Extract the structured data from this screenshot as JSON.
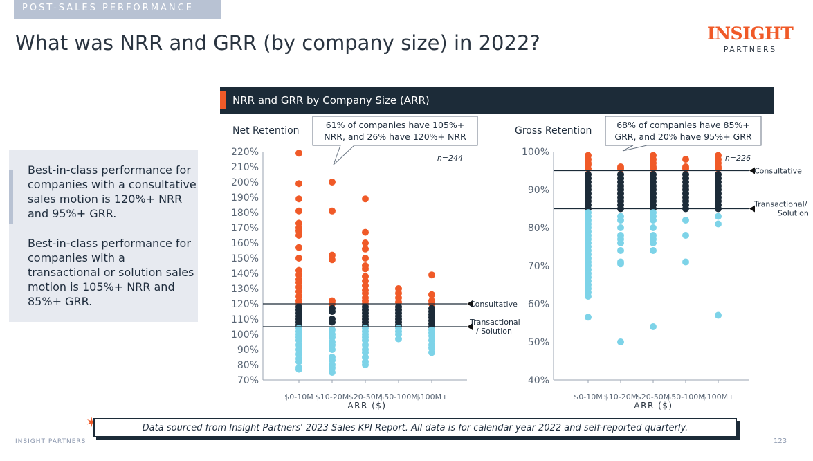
{
  "tag": "POST-SALES PERFORMANCE",
  "title": "What was NRR and GRR (by company size) in 2022?",
  "logo": {
    "line1": "INSIGHT",
    "line2": "PARTNERS"
  },
  "side": {
    "p1": "Best-in-class performance for companies with a consultative sales motion is 120%+ NRR and 95%+ GRR.",
    "p2": "Best-in-class performance for companies with a transactional or solution sales motion is 105%+ NRR and 85%+ GRR."
  },
  "chart_header": "NRR and GRR by Company Size (ARR)",
  "chart_data": [
    {
      "type": "scatter",
      "title": "Net Retention",
      "xlabel": "ARR ($)",
      "categories": [
        "$0-10M",
        "$10-20M",
        "$20-50M",
        "$50-100M",
        "$100M+"
      ],
      "ylim": [
        70,
        220
      ],
      "yticks": [
        220,
        210,
        200,
        190,
        180,
        170,
        160,
        150,
        140,
        130,
        120,
        110,
        100,
        90,
        80,
        70
      ],
      "ytick_suffix": "%",
      "n_label": "n=244",
      "callout": "61% of companies have 105%+ NRR, and 26% have 120%+ NRR",
      "thresholds": [
        {
          "value": 120,
          "label": "Consultative"
        },
        {
          "value": 105,
          "label": "Transactional / Solution"
        }
      ],
      "colors": {
        "above": "#f05a28",
        "middle": "#1c2b38",
        "below": "#7dd3e8"
      },
      "series": [
        {
          "category": "$0-10M",
          "values": [
            219,
            199,
            189,
            181,
            173,
            170,
            168,
            165,
            157,
            150,
            142,
            139,
            136,
            134,
            131,
            128,
            125,
            122,
            120,
            118,
            116,
            114,
            112,
            110,
            108,
            106,
            104,
            102,
            100,
            98,
            96,
            93,
            90,
            87,
            84,
            82,
            78,
            77
          ]
        },
        {
          "category": "$10-20M",
          "values": [
            200,
            181,
            152,
            149,
            122,
            120,
            117,
            115,
            110,
            108,
            103,
            100,
            98,
            95,
            93,
            90,
            85,
            83,
            80,
            78,
            75
          ]
        },
        {
          "category": "$20-50M",
          "values": [
            189,
            167,
            160,
            156,
            150,
            145,
            143,
            138,
            135,
            132,
            129,
            127,
            124,
            122,
            120,
            118,
            116,
            114,
            112,
            110,
            108,
            106,
            104,
            102,
            100,
            98,
            96,
            93,
            90,
            88,
            85,
            82,
            80
          ]
        },
        {
          "category": "$50-100M",
          "values": [
            130,
            127,
            124,
            121,
            118,
            116,
            114,
            112,
            110,
            108,
            106,
            104,
            102,
            100,
            97
          ]
        },
        {
          "category": "$100M+",
          "values": [
            139,
            126,
            122,
            120,
            117,
            115,
            113,
            111,
            109,
            107,
            105,
            103,
            101,
            99,
            96,
            93,
            91,
            88
          ]
        }
      ]
    },
    {
      "type": "scatter",
      "title": "Gross Retention",
      "xlabel": "ARR ($)",
      "categories": [
        "$0-10M",
        "$10-20M",
        "$20-50M",
        "$50-100M",
        "$100M+"
      ],
      "ylim": [
        40,
        100
      ],
      "yticks": [
        100,
        90,
        80,
        70,
        60,
        50,
        40
      ],
      "ytick_suffix": "%",
      "n_label": "n=226",
      "callout": "68% of companies have 85%+ GRR, and 20% have 95%+ GRR",
      "thresholds": [
        {
          "value": 95,
          "label": "Consultative"
        },
        {
          "value": 85,
          "label": "Transactional/ Solution"
        }
      ],
      "colors": {
        "above": "#f05a28",
        "middle": "#1c2b38",
        "below": "#7dd3e8"
      },
      "series": [
        {
          "category": "$0-10M",
          "values": [
            99,
            98,
            97,
            96.5,
            95.5,
            94,
            93,
            92,
            91,
            90,
            89,
            88,
            87,
            86,
            85,
            84,
            83,
            82,
            81,
            80,
            79,
            78,
            77,
            76,
            75,
            74,
            73,
            72,
            71,
            70,
            69,
            68,
            67,
            66,
            65,
            64,
            63,
            62,
            56.5
          ]
        },
        {
          "category": "$10-20M",
          "values": [
            96,
            95.5,
            94,
            93,
            92,
            91,
            90,
            89,
            88,
            87,
            86,
            85,
            83,
            82,
            80,
            78,
            77,
            76,
            74,
            71,
            70.5,
            50
          ]
        },
        {
          "category": "$20-50M",
          "values": [
            99,
            98,
            97,
            96,
            95.5,
            94,
            93,
            92,
            91,
            90,
            89,
            88,
            87,
            86,
            85,
            84,
            83,
            82,
            80,
            78,
            77,
            76,
            74,
            54
          ]
        },
        {
          "category": "$50-100M",
          "values": [
            98,
            96,
            95.5,
            94,
            93,
            92,
            91,
            90,
            89,
            88,
            87,
            86,
            85,
            82,
            78,
            71
          ]
        },
        {
          "category": "$100M+",
          "values": [
            99,
            98,
            97,
            96,
            95.5,
            94,
            93,
            92,
            91,
            90,
            89,
            88,
            87,
            86,
            85,
            83,
            81,
            57
          ]
        }
      ]
    }
  ],
  "footer": "Data sourced from Insight Partners' 2023 Sales KPI Report. All data is for calendar year 2022 and self-reported quarterly.",
  "brand": "INSIGHT PARTNERS",
  "page_number": "123"
}
